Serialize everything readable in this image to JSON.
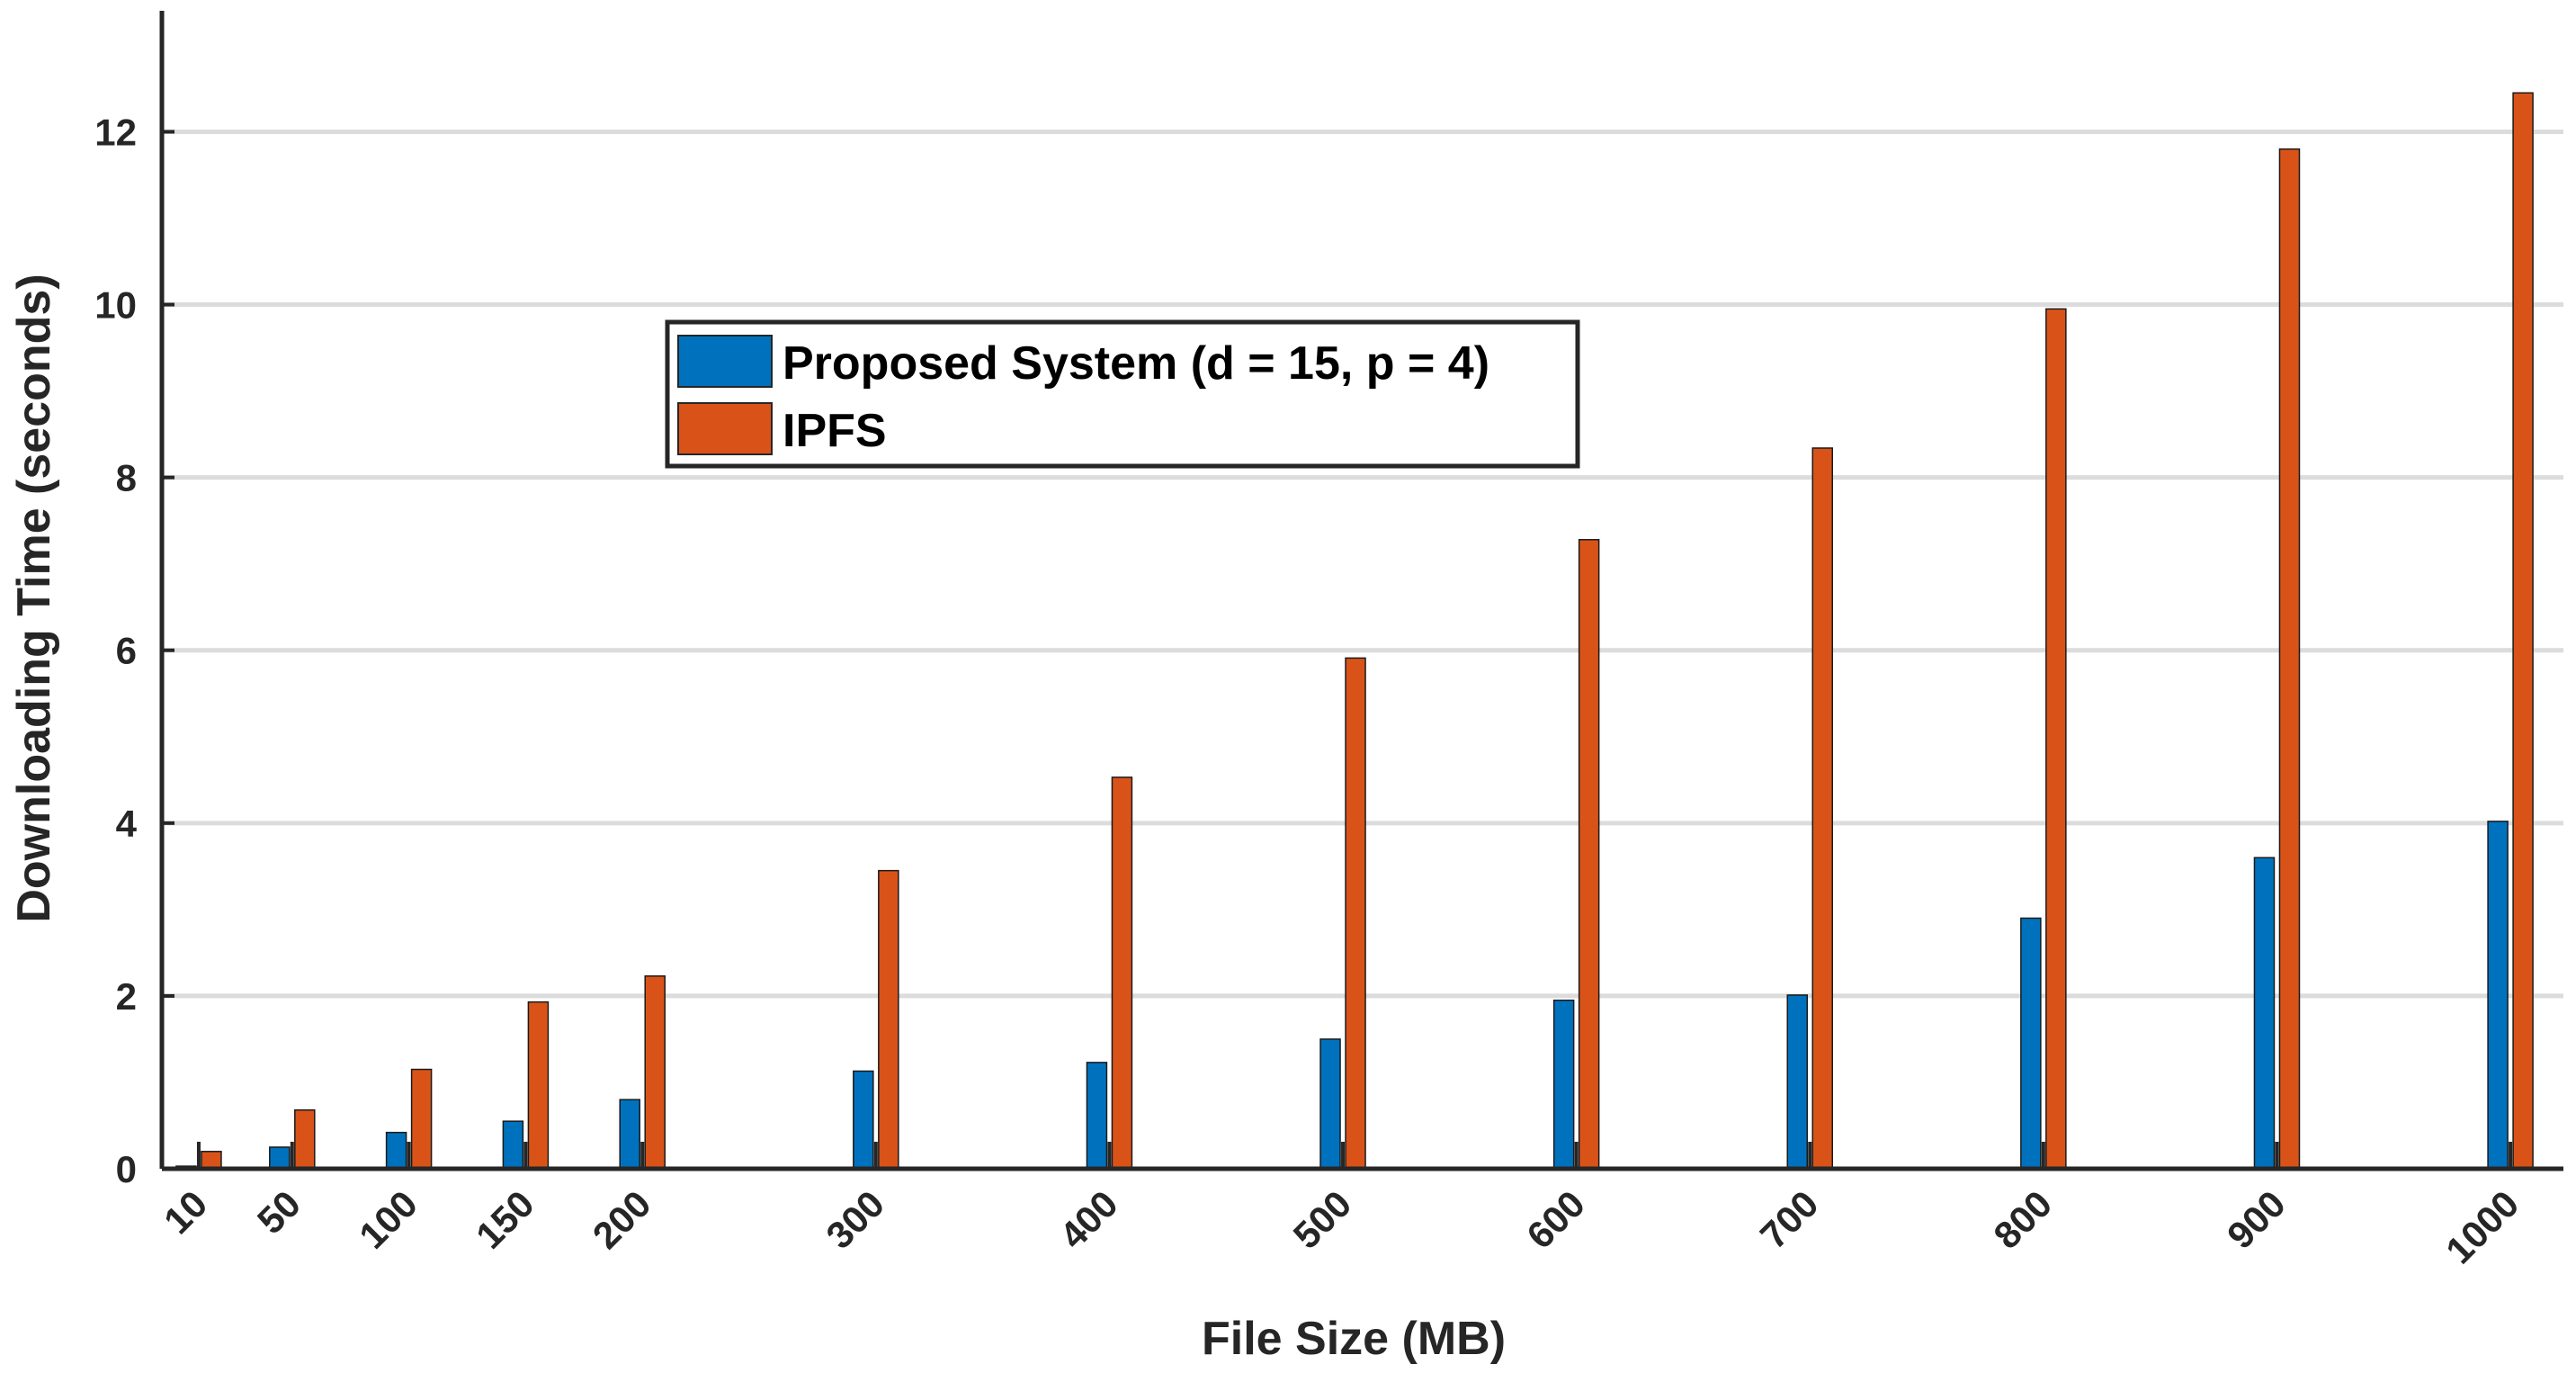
{
  "chart_data": {
    "type": "bar",
    "title": "",
    "xlabel": "File Size (MB)",
    "ylabel": "Downloading Time (seconds)",
    "categories": [
      "10",
      "50",
      "100",
      "150",
      "200",
      "300",
      "400",
      "500",
      "600",
      "700",
      "800",
      "900",
      "1000"
    ],
    "x": [
      10,
      50,
      100,
      150,
      200,
      300,
      400,
      500,
      600,
      700,
      800,
      900,
      1000
    ],
    "series": [
      {
        "name": "Proposed System (d = 15, p = 4)",
        "color": "#0072BD",
        "values": [
          0.03,
          0.25,
          0.42,
          0.55,
          0.8,
          1.13,
          1.23,
          1.5,
          1.95,
          2.01,
          2.9,
          3.6,
          4.02
        ]
      },
      {
        "name": "IPFS",
        "color": "#D95319",
        "values": [
          0.2,
          0.68,
          1.15,
          1.93,
          2.23,
          3.45,
          4.53,
          5.91,
          7.28,
          8.34,
          9.95,
          11.8,
          12.45
        ]
      }
    ],
    "xlim": [
      0,
      1020
    ],
    "ylim": [
      0,
      13.4
    ],
    "yticks": [
      0,
      2,
      4,
      6,
      8,
      10,
      12
    ],
    "grid": "horizontal",
    "legend": "upper-center"
  }
}
